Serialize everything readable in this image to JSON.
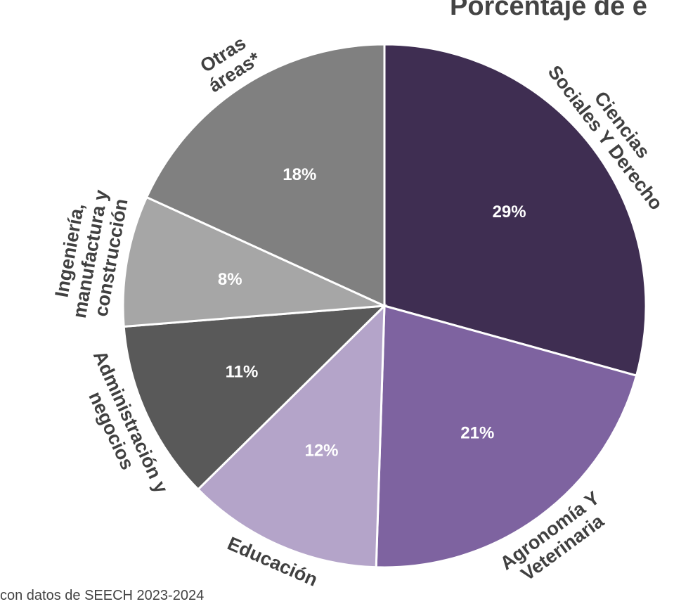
{
  "chart_data": {
    "type": "pie",
    "title": "Porcentaje de e",
    "source_note": "con datos de SEECH 2023-2024",
    "slices": [
      {
        "label_lines": [
          "Ciencias",
          "Sociales Y Derecho"
        ],
        "value": 29,
        "value_label": "29%",
        "color": "#3f2e52"
      },
      {
        "label_lines": [
          "Agronomía Y",
          "Veterinaria"
        ],
        "value": 21,
        "value_label": "21%",
        "color": "#7e63a0"
      },
      {
        "label_lines": [
          "Educación"
        ],
        "value": 12,
        "value_label": "12%",
        "color": "#b4a4c9"
      },
      {
        "label_lines": [
          "Administración y",
          "negocios"
        ],
        "value": 11,
        "value_label": "11%",
        "color": "#595959"
      },
      {
        "label_lines": [
          "Ingeniería,",
          "manufactura y",
          "construcción"
        ],
        "value": 8,
        "value_label": "8%",
        "color": "#a6a6a6"
      },
      {
        "label_lines": [
          "Otras",
          "áreas*"
        ],
        "value": 18,
        "value_label": "18%",
        "color": "#808080"
      }
    ],
    "legend": "none"
  }
}
